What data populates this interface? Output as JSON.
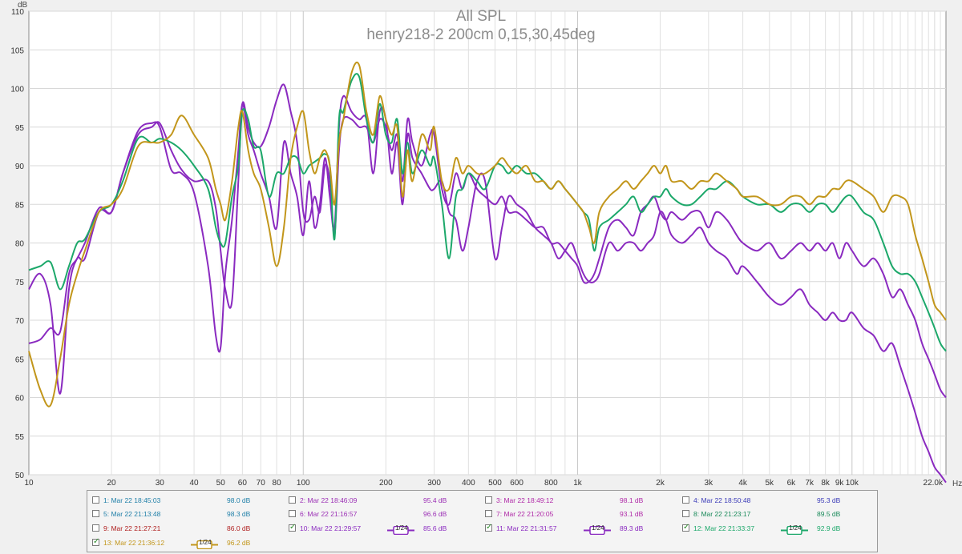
{
  "chart_data": {
    "type": "line",
    "title": "All SPL",
    "subtitle": "henry218-2 200cm 0,15,30,45deg",
    "ylabel": "dB",
    "xunit": "Hz",
    "xscale": "log",
    "xlim": [
      10,
      22000
    ],
    "ylim": [
      50,
      110
    ],
    "yticks": [
      110,
      105,
      100,
      95,
      90,
      85,
      80,
      75,
      70,
      65,
      60,
      55,
      50
    ],
    "xticks": [
      "10",
      "20",
      "30",
      "40",
      "50",
      "60",
      "70",
      "80",
      "100",
      "200",
      "300",
      "400",
      "500",
      "600",
      "800",
      "1k",
      "2k",
      "3k",
      "4k",
      "5k",
      "6k",
      "7k",
      "8k",
      "9k",
      "10k",
      "22.0k"
    ],
    "grid": true,
    "series": [
      {
        "name": "10: Mar 22 21:29:57",
        "color": "#8a2ac0",
        "x": [
          10,
          11,
          12,
          13,
          14,
          15,
          16,
          18,
          20,
          22,
          25,
          28,
          30,
          33,
          36,
          40,
          45,
          48,
          50,
          52,
          55,
          58,
          60,
          63,
          66,
          70,
          75,
          80,
          85,
          90,
          95,
          100,
          105,
          110,
          115,
          120,
          125,
          130,
          135,
          140,
          150,
          160,
          170,
          180,
          190,
          200,
          210,
          220,
          230,
          240,
          250,
          270,
          290,
          300,
          320,
          340,
          360,
          380,
          400,
          430,
          460,
          500,
          530,
          560,
          600,
          650,
          700,
          750,
          800,
          850,
          900,
          950,
          1000,
          1050,
          1100,
          1150,
          1200,
          1300,
          1400,
          1500,
          1600,
          1700,
          1800,
          1900,
          2000,
          2100,
          2200,
          2400,
          2600,
          2800,
          3000,
          3200,
          3500,
          3800,
          4000,
          4500,
          5000,
          5500,
          6000,
          6500,
          7000,
          7500,
          8000,
          8500,
          9000,
          9500,
          10000,
          11000,
          12000,
          13000,
          14000,
          15000,
          16000,
          17000,
          18000,
          19000,
          20000,
          21000,
          22000
        ],
        "y": [
          74,
          76,
          72,
          60.5,
          74,
          78,
          78,
          84,
          84,
          89,
          94.5,
          95.5,
          95,
          89.5,
          89,
          86.5,
          77,
          68,
          66.5,
          76,
          83,
          92,
          98,
          94,
          92,
          89,
          86,
          82,
          93,
          89,
          86,
          81,
          88,
          82,
          85,
          91,
          86,
          82,
          95,
          99,
          97,
          96,
          96,
          89,
          97,
          96,
          89,
          93,
          85,
          94,
          91,
          89,
          87,
          87,
          88,
          84,
          83,
          79,
          82,
          88,
          88,
          78,
          82,
          86,
          85,
          84,
          82,
          81,
          80,
          78,
          79,
          80,
          78,
          76,
          75,
          75,
          76,
          80,
          79,
          80,
          80,
          79,
          80,
          81,
          84,
          83,
          81,
          80,
          81,
          82,
          80,
          79,
          78,
          76,
          77,
          75,
          73,
          72,
          73,
          74,
          72,
          71,
          70,
          71,
          70,
          70,
          71,
          69,
          68,
          66,
          67,
          64,
          61,
          58,
          55,
          53,
          51,
          50,
          49
        ]
      },
      {
        "name": "11: Mar 22 21:31:57",
        "color": "#8a2ac0",
        "x": [
          10,
          11,
          12,
          13,
          14,
          15,
          16,
          18,
          20,
          22,
          25,
          28,
          30,
          33,
          36,
          40,
          45,
          48,
          50,
          52,
          55,
          58,
          60,
          63,
          66,
          70,
          75,
          80,
          85,
          90,
          95,
          100,
          105,
          110,
          115,
          120,
          125,
          130,
          135,
          140,
          150,
          160,
          170,
          180,
          190,
          200,
          210,
          220,
          230,
          240,
          250,
          270,
          290,
          300,
          320,
          340,
          360,
          380,
          400,
          430,
          460,
          500,
          530,
          560,
          600,
          650,
          700,
          750,
          800,
          850,
          900,
          950,
          1000,
          1050,
          1100,
          1150,
          1200,
          1300,
          1400,
          1500,
          1600,
          1700,
          1800,
          1900,
          2000,
          2100,
          2200,
          2400,
          2600,
          2800,
          3000,
          3200,
          3500,
          3800,
          4000,
          4500,
          5000,
          5500,
          6000,
          6500,
          7000,
          7500,
          8000,
          8500,
          9000,
          9500,
          10000,
          11000,
          12000,
          13000,
          14000,
          15000,
          16000,
          17000,
          18000,
          19000,
          20000,
          21000,
          22000
        ],
        "y": [
          67,
          67.5,
          69,
          68.5,
          76,
          78,
          80,
          84.5,
          84,
          89,
          94,
          95,
          95.5,
          92,
          89.5,
          88,
          88,
          84.5,
          79,
          74,
          72.5,
          88,
          98,
          95,
          93,
          92.5,
          95,
          98.5,
          100.5,
          97,
          93,
          84,
          83,
          86,
          84,
          90,
          88,
          81,
          92,
          96,
          96,
          95,
          95,
          93,
          96,
          95,
          92,
          94,
          88,
          96,
          93,
          90,
          94,
          94,
          87,
          85,
          89,
          87,
          89,
          87,
          86,
          85,
          86,
          84,
          84,
          83,
          82,
          82,
          80,
          80,
          79,
          78,
          77,
          75,
          75,
          76,
          78,
          82,
          83,
          82,
          81,
          84,
          85,
          86,
          84,
          83,
          84,
          83,
          84,
          84,
          82,
          84,
          83,
          81,
          80,
          79,
          80,
          78,
          79,
          80,
          79,
          80,
          79,
          80,
          78,
          80,
          79,
          77,
          78,
          76,
          73,
          74,
          72,
          70,
          67,
          65,
          63,
          61,
          60
        ]
      },
      {
        "name": "12: Mar 22 21:33:37",
        "color": "#1ca86a",
        "x": [
          10,
          11,
          12,
          13,
          14,
          15,
          16,
          18,
          20,
          22,
          25,
          28,
          30,
          33,
          36,
          40,
          45,
          48,
          50,
          52,
          55,
          58,
          60,
          63,
          66,
          70,
          75,
          80,
          85,
          90,
          95,
          100,
          105,
          110,
          115,
          120,
          125,
          130,
          135,
          140,
          150,
          160,
          170,
          180,
          190,
          200,
          210,
          220,
          230,
          240,
          250,
          270,
          290,
          300,
          320,
          340,
          360,
          380,
          400,
          430,
          460,
          500,
          530,
          560,
          600,
          650,
          700,
          750,
          800,
          850,
          900,
          950,
          1000,
          1050,
          1100,
          1150,
          1200,
          1300,
          1400,
          1500,
          1600,
          1700,
          1800,
          1900,
          2000,
          2100,
          2200,
          2400,
          2600,
          2800,
          3000,
          3200,
          3500,
          3800,
          4000,
          4500,
          5000,
          5500,
          6000,
          6500,
          7000,
          7500,
          8000,
          8500,
          9000,
          9500,
          10000,
          11000,
          12000,
          13000,
          14000,
          15000,
          16000,
          17000,
          18000,
          19000,
          20000,
          21000,
          22000
        ],
        "y": [
          76.5,
          77,
          77.5,
          74,
          77,
          80,
          80.5,
          84,
          85,
          88,
          93.5,
          93,
          93.5,
          93,
          92,
          90,
          87,
          82,
          80,
          80,
          86,
          90,
          97,
          96,
          92.5,
          92,
          86,
          89,
          89,
          91,
          91,
          89,
          90,
          90.5,
          91,
          91.5,
          90,
          80.5,
          96,
          97,
          101,
          101.5,
          96,
          93,
          98,
          94,
          93,
          96,
          89,
          93,
          89,
          92,
          90,
          91,
          85,
          78,
          86,
          87,
          89,
          88,
          87,
          90,
          90,
          89,
          90,
          89,
          89,
          88,
          87,
          88,
          87,
          86,
          85,
          84,
          83,
          79,
          82,
          83,
          84,
          85,
          86,
          84,
          85,
          86,
          86,
          87,
          86,
          85,
          85,
          86,
          87,
          87,
          88,
          87,
          86,
          85,
          85,
          84,
          85,
          85,
          84,
          85,
          85,
          84,
          85,
          86,
          86,
          84,
          83,
          80,
          77,
          76,
          76,
          75,
          73,
          71,
          69,
          67,
          66
        ]
      },
      {
        "name": "13: Mar 22 21:36:12",
        "color": "#c2961b",
        "x": [
          10,
          11,
          12,
          13,
          14,
          15,
          16,
          18,
          20,
          22,
          25,
          28,
          30,
          33,
          36,
          40,
          45,
          48,
          50,
          52,
          55,
          58,
          60,
          63,
          66,
          70,
          75,
          80,
          85,
          90,
          95,
          100,
          105,
          110,
          115,
          120,
          125,
          130,
          135,
          140,
          150,
          160,
          170,
          180,
          190,
          200,
          210,
          220,
          230,
          240,
          250,
          270,
          290,
          300,
          320,
          340,
          360,
          380,
          400,
          430,
          460,
          500,
          530,
          560,
          600,
          650,
          700,
          750,
          800,
          850,
          900,
          950,
          1000,
          1050,
          1100,
          1150,
          1200,
          1300,
          1400,
          1500,
          1600,
          1700,
          1800,
          1900,
          2000,
          2100,
          2200,
          2400,
          2600,
          2800,
          3000,
          3200,
          3500,
          3800,
          4000,
          4500,
          5000,
          5500,
          6000,
          6500,
          7000,
          7500,
          8000,
          8500,
          9000,
          9500,
          10000,
          11000,
          12000,
          13000,
          14000,
          15000,
          16000,
          17000,
          18000,
          19000,
          20000,
          21000,
          22000
        ],
        "y": [
          66,
          61,
          59,
          65,
          72,
          76,
          79,
          84,
          85,
          87,
          92.5,
          93,
          93,
          94,
          96.5,
          94,
          91,
          87,
          85,
          83,
          88,
          95,
          97,
          92,
          89,
          87,
          82,
          77,
          82,
          91,
          95,
          97,
          92,
          89,
          91,
          92,
          90,
          85,
          93,
          96,
          102,
          103,
          97,
          94,
          99,
          96,
          94,
          95,
          86,
          92,
          88,
          94,
          92,
          95,
          88,
          87,
          91,
          89,
          90,
          89,
          89,
          90,
          91,
          90,
          89,
          90,
          88,
          88,
          87,
          88,
          87,
          86,
          85,
          84,
          82,
          80,
          84,
          86,
          87,
          88,
          87,
          88,
          89,
          90,
          89,
          90,
          88,
          88,
          87,
          88,
          88,
          89,
          88,
          87,
          86,
          86,
          85,
          85,
          86,
          86,
          85,
          86,
          86,
          87,
          87,
          88,
          88,
          87,
          86,
          84,
          86,
          86,
          85,
          81,
          78,
          75,
          72,
          71,
          70
        ]
      }
    ]
  },
  "legend": {
    "entries": [
      {
        "label": "1: Mar 22 18:45:03",
        "value": "98.0 dB",
        "checked": false,
        "color": "#1f7fa8"
      },
      {
        "label": "2: Mar 22 18:46:09",
        "value": "95.4 dB",
        "checked": false,
        "color": "#9b2fb5"
      },
      {
        "label": "3: Mar 22 18:49:12",
        "value": "98.1 dB",
        "checked": false,
        "color": "#b02aa8"
      },
      {
        "label": "4: Mar 22 18:50:48",
        "value": "95.3 dB",
        "checked": false,
        "color": "#3a3ab8"
      },
      {
        "label": "5: Mar 22 21:13:48",
        "value": "98.3 dB",
        "checked": false,
        "color": "#1f7fa8"
      },
      {
        "label": "6: Mar 22 21:16:57",
        "value": "96.6 dB",
        "checked": false,
        "color": "#9b2fb5"
      },
      {
        "label": "7: Mar 22 21:20:05",
        "value": "93.1 dB",
        "checked": false,
        "color": "#b02aa8"
      },
      {
        "label": "8: Mar 22 21:23:17",
        "value": "89.5 dB",
        "checked": false,
        "color": "#1a8a5a"
      },
      {
        "label": "9: Mar 22 21:27:21",
        "value": "86.0 dB",
        "checked": false,
        "color": "#b02020"
      },
      {
        "label": "10: Mar 22 21:29:57",
        "value": "85.6 dB",
        "checked": true,
        "color": "#8a2ac0",
        "smoothing": "1/24"
      },
      {
        "label": "11: Mar 22 21:31:57",
        "value": "89.3 dB",
        "checked": true,
        "color": "#8a2ac0",
        "smoothing": "1/24"
      },
      {
        "label": "12: Mar 22 21:33:37",
        "value": "92.9 dB",
        "checked": true,
        "color": "#1ca86a",
        "smoothing": "1/24"
      },
      {
        "label": "13: Mar 22 21:36:12",
        "value": "96.2 dB",
        "checked": true,
        "color": "#c2961b",
        "smoothing": "1/24"
      }
    ]
  }
}
